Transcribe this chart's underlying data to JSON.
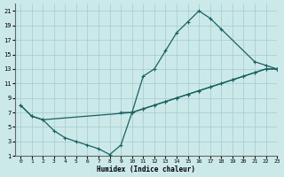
{
  "xlabel": "Humidex (Indice chaleur)",
  "background_color": "#cce9e9",
  "grid_color": "#aacfcf",
  "line_color": "#1a6060",
  "xlim": [
    -0.5,
    23
  ],
  "ylim": [
    1,
    22
  ],
  "xticks": [
    0,
    1,
    2,
    3,
    4,
    5,
    6,
    7,
    8,
    9,
    10,
    11,
    12,
    13,
    14,
    15,
    16,
    17,
    18,
    19,
    20,
    21,
    22,
    23
  ],
  "yticks": [
    1,
    3,
    5,
    7,
    9,
    11,
    13,
    15,
    17,
    19,
    21
  ],
  "top_x": [
    0,
    1,
    2,
    3,
    4,
    5,
    6,
    7,
    8,
    9,
    10,
    11,
    12,
    13,
    14,
    15,
    16,
    17,
    18,
    21,
    22,
    23
  ],
  "top_y": [
    8,
    6.5,
    6,
    4.5,
    3.5,
    3,
    2.5,
    2,
    1.2,
    2.5,
    7,
    12,
    13,
    15.5,
    18,
    19.5,
    21,
    20,
    18.5,
    14,
    13.5,
    13
  ],
  "mid_x": [
    0,
    1,
    2,
    10,
    11,
    12,
    13,
    14,
    15,
    16,
    17,
    18,
    19,
    20,
    21,
    22,
    23
  ],
  "mid_y": [
    8,
    6.5,
    6,
    7,
    7.5,
    8,
    8.5,
    9,
    9.5,
    10,
    10.5,
    11,
    11.5,
    12,
    12.5,
    13,
    13
  ],
  "bot_x": [
    9,
    10,
    11,
    12,
    13,
    14,
    15,
    16,
    17,
    18,
    19,
    20,
    21,
    22,
    23
  ],
  "bot_y": [
    7,
    7,
    7.5,
    8,
    8.5,
    9,
    9.5,
    10,
    10.5,
    11,
    11.5,
    12,
    12.5,
    13,
    13
  ]
}
